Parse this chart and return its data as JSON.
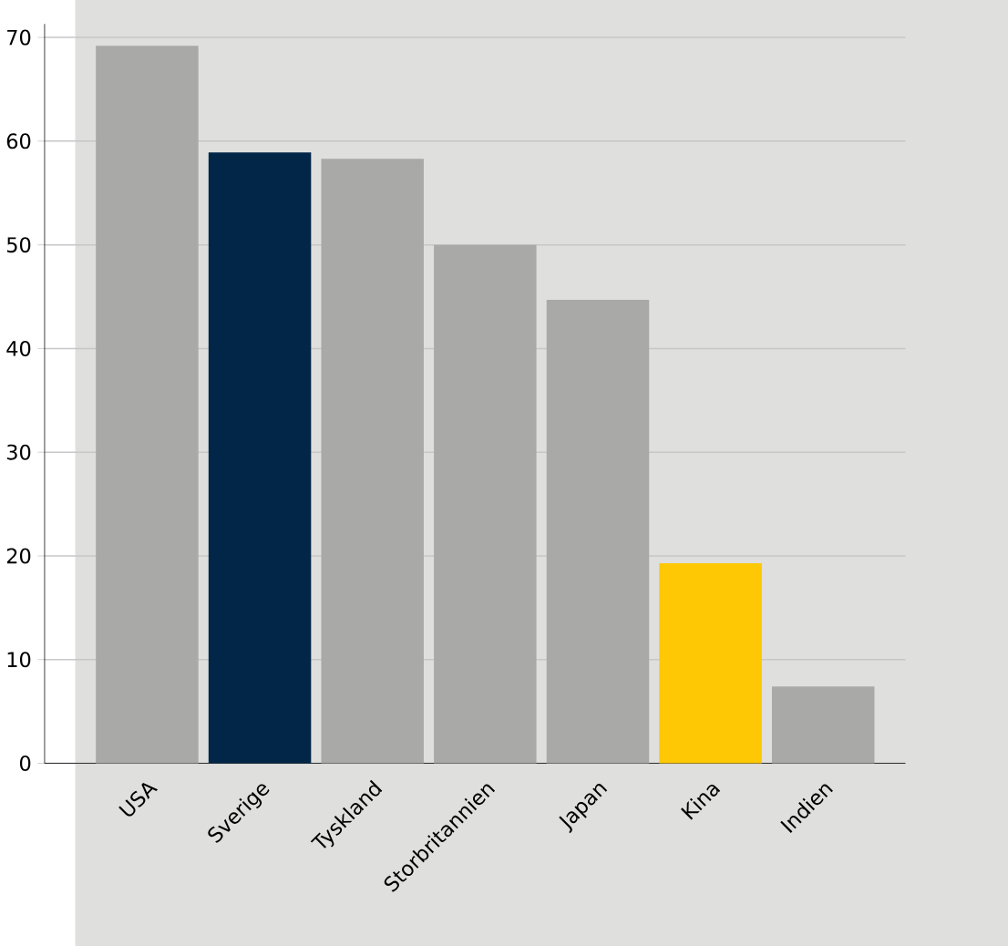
{
  "chart_data": {
    "type": "bar",
    "categories": [
      "USA",
      "Sverige",
      "Tyskland",
      "Storbritannien",
      "Japan",
      "Kina",
      "Indien"
    ],
    "values": [
      69.2,
      58.9,
      58.3,
      50.0,
      44.7,
      19.3,
      7.4
    ],
    "colors": [
      "#a9a9a7",
      "#022648",
      "#a9a9a7",
      "#a9a9a7",
      "#a9a9a7",
      "#fec804",
      "#a9a9a7"
    ],
    "ylim": [
      0,
      71.3
    ],
    "yticks": [
      0,
      10,
      20,
      30,
      40,
      50,
      60,
      70
    ],
    "grid": "y"
  }
}
